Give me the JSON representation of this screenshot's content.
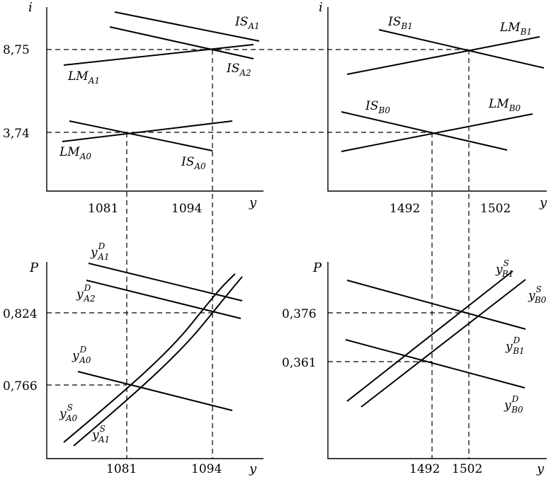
{
  "panels": {
    "tl": {
      "ylabel": "i",
      "xlabel": "y",
      "yticks": [
        "8,75",
        "3,74"
      ],
      "xticks": [
        "1081",
        "1094"
      ],
      "curves": [
        {
          "base": "IS",
          "sub": "A1",
          "sup": ""
        },
        {
          "base": "IS",
          "sub": "A2",
          "sup": ""
        },
        {
          "base": "LM",
          "sub": "A1",
          "sup": ""
        },
        {
          "base": "LM",
          "sub": "A0",
          "sup": ""
        },
        {
          "base": "IS",
          "sub": "A0",
          "sup": ""
        }
      ]
    },
    "tr": {
      "ylabel": "i",
      "xlabel": "y",
      "xticks": [
        "1492",
        "1502"
      ],
      "curves": [
        {
          "base": "IS",
          "sub": "B1",
          "sup": ""
        },
        {
          "base": "LM",
          "sub": "B1",
          "sup": ""
        },
        {
          "base": "IS",
          "sub": "B0",
          "sup": ""
        },
        {
          "base": "LM",
          "sub": "B0",
          "sup": ""
        }
      ]
    },
    "bl": {
      "ylabel": "P",
      "xlabel": "y",
      "yticks": [
        "0,824",
        "0,766"
      ],
      "xticks": [
        "1081",
        "1094"
      ],
      "curves": [
        {
          "base": "y",
          "sub": "A1",
          "sup": "D"
        },
        {
          "base": "y",
          "sub": "A2",
          "sup": "D"
        },
        {
          "base": "y",
          "sub": "A0",
          "sup": "D"
        },
        {
          "base": "y",
          "sub": "A0",
          "sup": "S"
        },
        {
          "base": "y",
          "sub": "A1",
          "sup": "S"
        }
      ]
    },
    "br": {
      "ylabel": "P",
      "xlabel": "y",
      "yticks": [
        "0,376",
        "0,361"
      ],
      "xticks": [
        "1492",
        "1502"
      ],
      "curves": [
        {
          "base": "y",
          "sub": "B1",
          "sup": "S"
        },
        {
          "base": "y",
          "sub": "B0",
          "sup": "S"
        },
        {
          "base": "y",
          "sub": "B1",
          "sup": "D"
        },
        {
          "base": "y",
          "sub": "B0",
          "sup": "D"
        }
      ]
    }
  }
}
